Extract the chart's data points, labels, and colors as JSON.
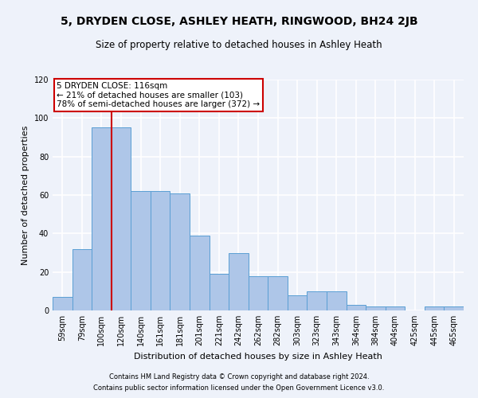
{
  "title": "5, DRYDEN CLOSE, ASHLEY HEATH, RINGWOOD, BH24 2JB",
  "subtitle": "Size of property relative to detached houses in Ashley Heath",
  "xlabel": "Distribution of detached houses by size in Ashley Heath",
  "ylabel": "Number of detached properties",
  "footnote1": "Contains HM Land Registry data © Crown copyright and database right 2024.",
  "footnote2": "Contains public sector information licensed under the Open Government Licence v3.0.",
  "categories": [
    "59sqm",
    "79sqm",
    "100sqm",
    "120sqm",
    "140sqm",
    "161sqm",
    "181sqm",
    "201sqm",
    "221sqm",
    "242sqm",
    "262sqm",
    "282sqm",
    "303sqm",
    "323sqm",
    "343sqm",
    "364sqm",
    "384sqm",
    "404sqm",
    "425sqm",
    "445sqm",
    "465sqm"
  ],
  "values": [
    7,
    32,
    95,
    95,
    62,
    62,
    61,
    39,
    19,
    30,
    18,
    18,
    8,
    10,
    10,
    3,
    2,
    2,
    0,
    2,
    2
  ],
  "bar_color": "#aec6e8",
  "bar_edgecolor": "#5a9fd4",
  "background_color": "#eef2fa",
  "gridcolor": "#ffffff",
  "ylim": [
    0,
    120
  ],
  "yticks": [
    0,
    20,
    40,
    60,
    80,
    100,
    120
  ],
  "annotation_text": "5 DRYDEN CLOSE: 116sqm\n← 21% of detached houses are smaller (103)\n78% of semi-detached houses are larger (372) →",
  "vline_color": "#cc0000",
  "vline_x": 2.5,
  "ann_fontsize": 7.5,
  "title_fontsize": 10,
  "subtitle_fontsize": 8.5,
  "xlabel_fontsize": 8,
  "ylabel_fontsize": 8,
  "tick_fontsize": 7,
  "footnote_fontsize": 6
}
